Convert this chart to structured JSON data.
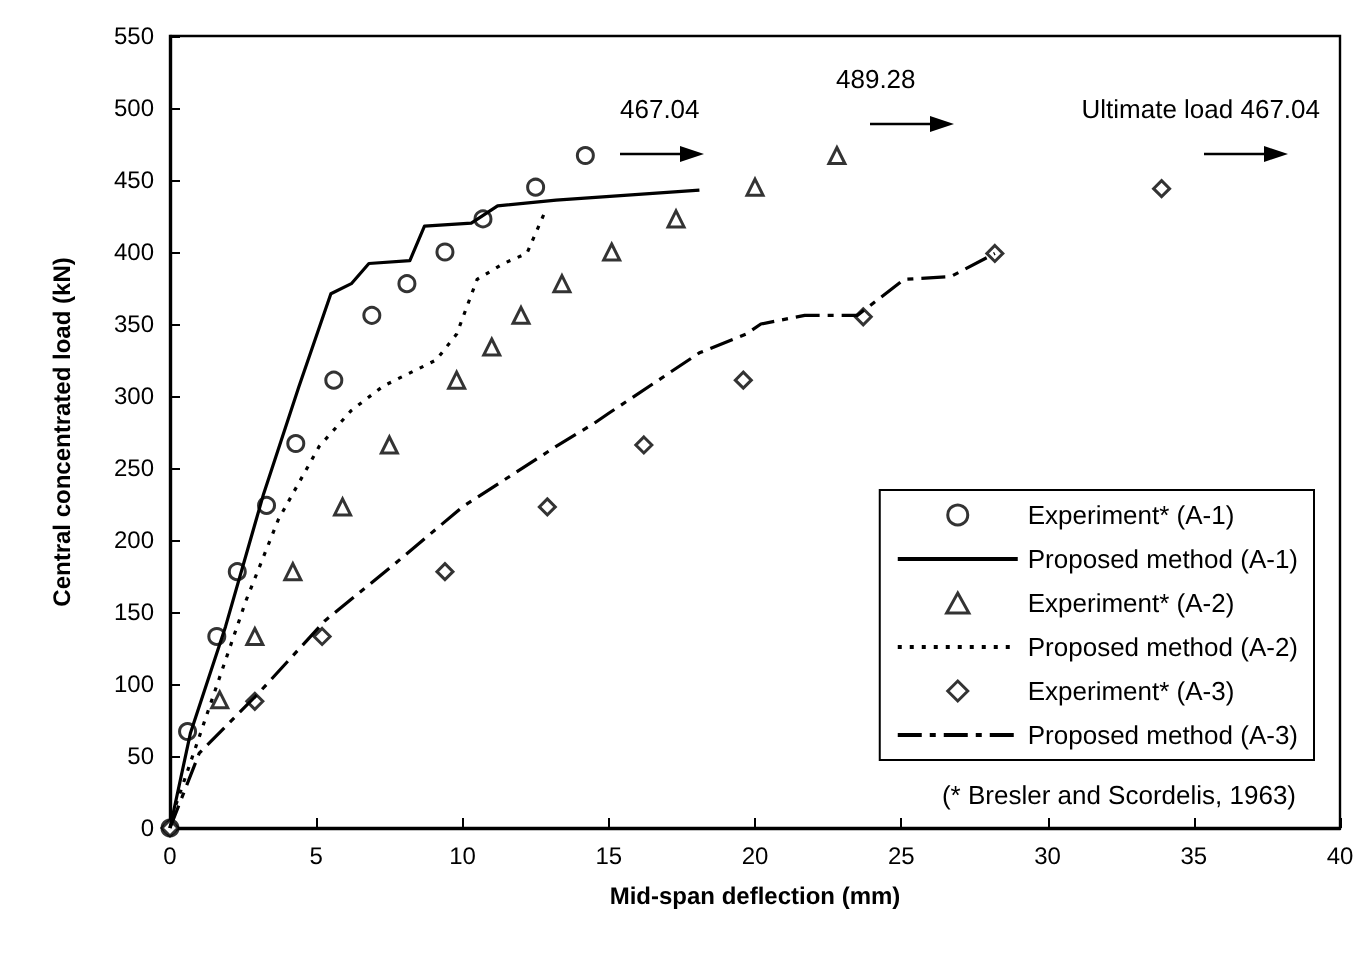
{
  "chart_data": {
    "type": "scatter",
    "xlabel": "Mid-span deflection (mm)",
    "ylabel": "Central concentrated load (kN)",
    "xlim": [
      0,
      40
    ],
    "xticks": [
      0,
      5,
      10,
      15,
      20,
      25,
      30,
      35,
      40
    ],
    "ylim": [
      0,
      550
    ],
    "yticks": [
      0,
      50,
      100,
      150,
      200,
      250,
      300,
      350,
      400,
      450,
      500,
      550
    ],
    "grid": false,
    "legend": "bottom right",
    "series": [
      {
        "name": "Experiment* (A-1)",
        "marker": "circle",
        "color": "#000000",
        "x": [
          0,
          0.6,
          1.6,
          2.3,
          3.3,
          4.3,
          5.6,
          6.9,
          8.1,
          9.4,
          10.7,
          12.5,
          14.2
        ],
        "values": [
          0,
          67,
          133,
          178,
          224,
          267,
          311,
          356,
          378,
          400,
          423,
          445,
          467
        ]
      },
      {
        "name": "Proposed method (A-1)",
        "type": "line",
        "marker": "none",
        "line_style": "solid",
        "color": "#000000",
        "x": [
          0,
          0.7,
          1.9,
          3.2,
          4.4,
          5.5,
          6.2,
          6.8,
          8.2,
          8.7,
          10.3,
          11.2,
          13.2,
          18.1
        ],
        "values": [
          0,
          66,
          140,
          232,
          306,
          371,
          378,
          392,
          394,
          418,
          420,
          432,
          436,
          443
        ]
      },
      {
        "name": "Experiment* (A-2)",
        "marker": "triangle",
        "color": "#000000",
        "x": [
          1.7,
          2.9,
          4.2,
          5.9,
          7.5,
          9.8,
          11.0,
          12.0,
          13.4,
          15.1,
          17.3,
          20.0,
          22.8
        ],
        "values": [
          89,
          133,
          178,
          223,
          266,
          311,
          334,
          356,
          378,
          400,
          423,
          445,
          467
        ]
      },
      {
        "name": "Proposed method (A-2)",
        "type": "line",
        "marker": "none",
        "line_style": "dotted",
        "color": "#000000",
        "x": [
          0,
          0.1,
          1.5,
          2.6,
          3.7,
          5.1,
          6.2,
          7.3,
          9.1,
          9.8,
          10.5,
          11.4,
          12.2,
          12.8
        ],
        "values": [
          0,
          10,
          93,
          158,
          214,
          265,
          290,
          307,
          325,
          343,
          381,
          392,
          399,
          427
        ]
      },
      {
        "name": "Experiment* (A-3)",
        "marker": "diamond",
        "color": "#000000",
        "x": [
          0,
          2.9,
          5.2,
          9.4,
          12.9,
          16.2,
          19.6,
          23.7,
          28.2,
          33.9
        ],
        "values": [
          0,
          88,
          133,
          178,
          223,
          266,
          311,
          355,
          399,
          444
        ]
      },
      {
        "name": "Proposed method (A-3)",
        "type": "line",
        "marker": "none",
        "line_style": "dashed",
        "color": "#000000",
        "x": [
          0,
          1.0,
          3.0,
          5.3,
          7.6,
          10.0,
          13.2,
          14.5,
          15.0,
          18.1,
          19.7,
          20.2,
          21.7,
          23.5,
          25.1,
          26.7,
          28.2
        ],
        "values": [
          0,
          52,
          93,
          144,
          182,
          223,
          265,
          281,
          288,
          330,
          343,
          350,
          356,
          356,
          381,
          383,
          399
        ]
      }
    ],
    "annotations": [
      "467.04",
      "489.28",
      "Ultimate load 467.04",
      "(* Bresler and Scordelis, 1963)"
    ]
  }
}
